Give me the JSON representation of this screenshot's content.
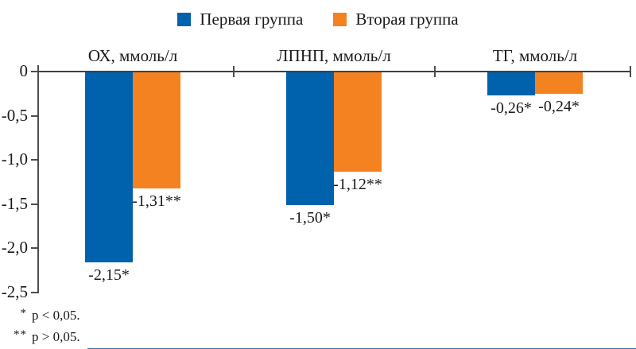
{
  "chart_data": {
    "type": "bar",
    "categories": [
      "ОХ, ммоль/л",
      "ЛПНП, ммоль/л",
      "ТГ, ммоль/л"
    ],
    "series": [
      {
        "name": "Первая группа",
        "color": "#0061AC",
        "values": [
          -2.15,
          -1.5,
          -0.26
        ],
        "value_labels": [
          "-2,15*",
          "-1,50*",
          "-0,26*"
        ]
      },
      {
        "name": "Вторая группа",
        "color": "#F58221",
        "values": [
          -1.31,
          -1.12,
          -0.24
        ],
        "value_labels": [
          "-1,31**",
          "-1,12**",
          "-0,24*"
        ]
      }
    ],
    "ylim": [
      -2.5,
      0
    ],
    "yticks": {
      "values": [
        0,
        -0.5,
        -1.0,
        -1.5,
        -2.0,
        -2.5
      ],
      "labels": [
        "0",
        "-0,5",
        "-1,0",
        "-1,5",
        "-2,0",
        "-2,5"
      ]
    },
    "grid": false,
    "legend_position": "top",
    "footnotes": [
      {
        "marker": "*",
        "text": "p < 0,05."
      },
      {
        "marker": "**",
        "text": "p > 0,05."
      }
    ]
  }
}
